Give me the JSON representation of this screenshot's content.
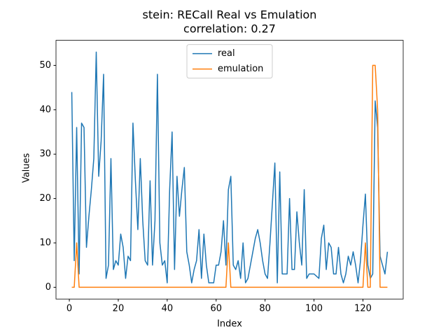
{
  "chart_data": {
    "type": "line",
    "title": "stein: RECall Real vs Emulation",
    "subtitle": "correlation: 0.27",
    "x_label": "Index",
    "y_label": "Values",
    "x": [
      1,
      2,
      3,
      4,
      5,
      6,
      7,
      8,
      9,
      10,
      11,
      12,
      13,
      14,
      15,
      16,
      17,
      18,
      19,
      20,
      21,
      22,
      23,
      24,
      25,
      26,
      27,
      28,
      29,
      30,
      31,
      32,
      33,
      34,
      35,
      36,
      37,
      38,
      39,
      40,
      41,
      42,
      43,
      44,
      45,
      46,
      47,
      48,
      49,
      50,
      51,
      52,
      53,
      54,
      55,
      56,
      57,
      58,
      59,
      60,
      61,
      62,
      63,
      64,
      65,
      66,
      67,
      68,
      69,
      70,
      71,
      72,
      73,
      74,
      75,
      76,
      77,
      78,
      79,
      80,
      81,
      82,
      83,
      84,
      85,
      86,
      87,
      88,
      89,
      90,
      91,
      92,
      93,
      94,
      95,
      96,
      97,
      98,
      99,
      100,
      101,
      102,
      103,
      104,
      105,
      106,
      107,
      108,
      109,
      110,
      111,
      112,
      113,
      114,
      115,
      116,
      117,
      118,
      119,
      120,
      121,
      122,
      123,
      124,
      125,
      126,
      127,
      128,
      129,
      130
    ],
    "series": [
      {
        "name": "real",
        "color": "#1f77b4",
        "values": [
          44,
          6,
          36,
          3,
          37,
          36,
          9,
          16,
          22,
          29,
          53,
          25,
          33,
          48,
          2,
          5,
          29,
          4,
          6,
          5,
          12,
          9,
          2,
          7,
          6,
          37,
          24,
          13,
          29,
          15,
          6,
          5,
          24,
          5,
          15,
          48,
          10,
          5,
          6,
          1,
          22,
          35,
          4,
          25,
          16,
          22,
          27,
          8,
          5,
          1,
          4,
          6,
          13,
          2,
          12,
          5,
          1,
          1,
          1,
          5,
          5,
          8,
          15,
          5,
          22,
          25,
          5,
          4,
          6,
          2,
          10,
          1,
          2,
          5,
          8,
          11,
          13,
          10,
          6,
          3,
          2,
          10,
          19,
          28,
          1,
          26,
          3,
          3,
          3,
          20,
          4,
          4,
          17,
          10,
          5,
          22,
          2,
          3,
          3,
          3,
          2.5,
          2,
          11,
          14,
          4,
          10,
          9,
          3,
          3,
          9,
          3,
          1,
          3,
          7,
          5,
          8,
          5,
          1,
          6,
          14,
          21,
          5,
          2,
          3,
          42,
          36,
          7,
          5,
          3,
          8
        ]
      },
      {
        "name": "emulation",
        "color": "#ff7f0e",
        "values": [
          0,
          0,
          10,
          0,
          0,
          0,
          0,
          0,
          0,
          0,
          0,
          0,
          0,
          0,
          0,
          0,
          0,
          0,
          0,
          0,
          0,
          0,
          0,
          0,
          0,
          0,
          0,
          0,
          0,
          0,
          0,
          0,
          0,
          0,
          0,
          0,
          0,
          0,
          0,
          0,
          0,
          0,
          0,
          0,
          0,
          0,
          0,
          0,
          0,
          0,
          0,
          0,
          0,
          0,
          0,
          0,
          0,
          0,
          0,
          0,
          0,
          0,
          0,
          0,
          10,
          0,
          0,
          0,
          0,
          0,
          0,
          0,
          0,
          0,
          0,
          0,
          0,
          0,
          0,
          0,
          0,
          0,
          0,
          0,
          0,
          0,
          0,
          0,
          0,
          0,
          0,
          0,
          0,
          0,
          0,
          0,
          0,
          0,
          0,
          0,
          0,
          0,
          0,
          0,
          0,
          0,
          0,
          0,
          0,
          0,
          0,
          0,
          0,
          0,
          0,
          0,
          0,
          0,
          0,
          0,
          10,
          0,
          0,
          50,
          50,
          40,
          0,
          0,
          0,
          0
        ]
      }
    ],
    "xlim": [
      -5.45,
      136.45
    ],
    "xticks": [
      0,
      20,
      40,
      60,
      80,
      100,
      120
    ],
    "ylim": [
      -2.65,
      55.65
    ],
    "yticks": [
      0,
      10,
      20,
      30,
      40,
      50
    ],
    "legend": "upper center"
  }
}
